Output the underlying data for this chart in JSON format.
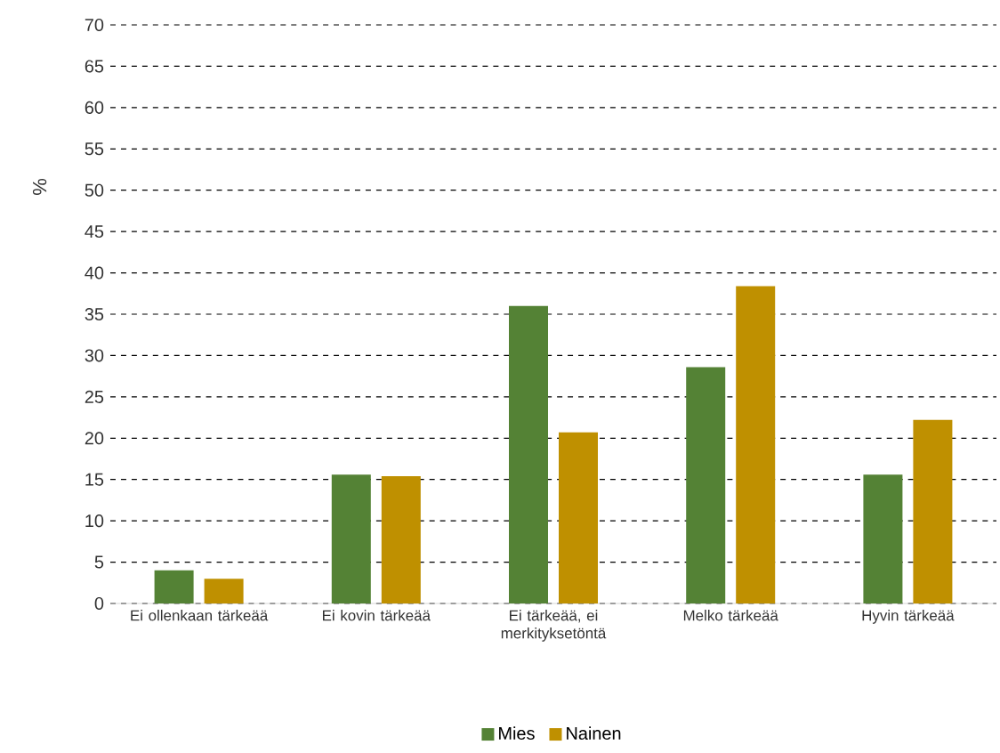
{
  "chart_data": {
    "type": "bar",
    "ylabel": "%",
    "categories": [
      "Ei ollenkaan tärkeää",
      "Ei kovin tärkeää",
      "Ei tärkeää, ei merkityksetöntä",
      "Melko tärkeää",
      "Hyvin tärkeää"
    ],
    "series": [
      {
        "name": "Mies",
        "color": "#548235",
        "values": [
          4.0,
          15.6,
          36.0,
          28.6,
          15.6
        ]
      },
      {
        "name": "Nainen",
        "color": "#bf9000",
        "values": [
          3.0,
          15.4,
          20.7,
          38.4,
          22.2
        ]
      }
    ],
    "ylim": [
      0,
      70
    ],
    "yticks": [
      0,
      5,
      10,
      15,
      20,
      25,
      30,
      35,
      40,
      45,
      50,
      55,
      60,
      65,
      70
    ],
    "grid": "y",
    "legend": "bottom"
  }
}
